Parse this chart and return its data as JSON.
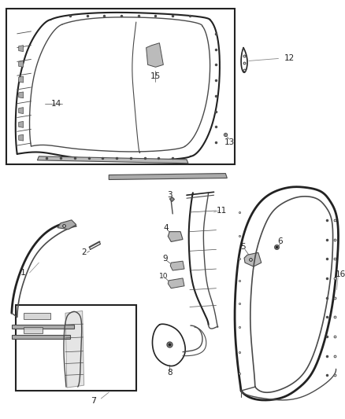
{
  "bg_color": "#ffffff",
  "lc": "#4a4a4a",
  "dc": "#222222",
  "fig_w": 4.38,
  "fig_h": 5.33,
  "dpi": 100
}
